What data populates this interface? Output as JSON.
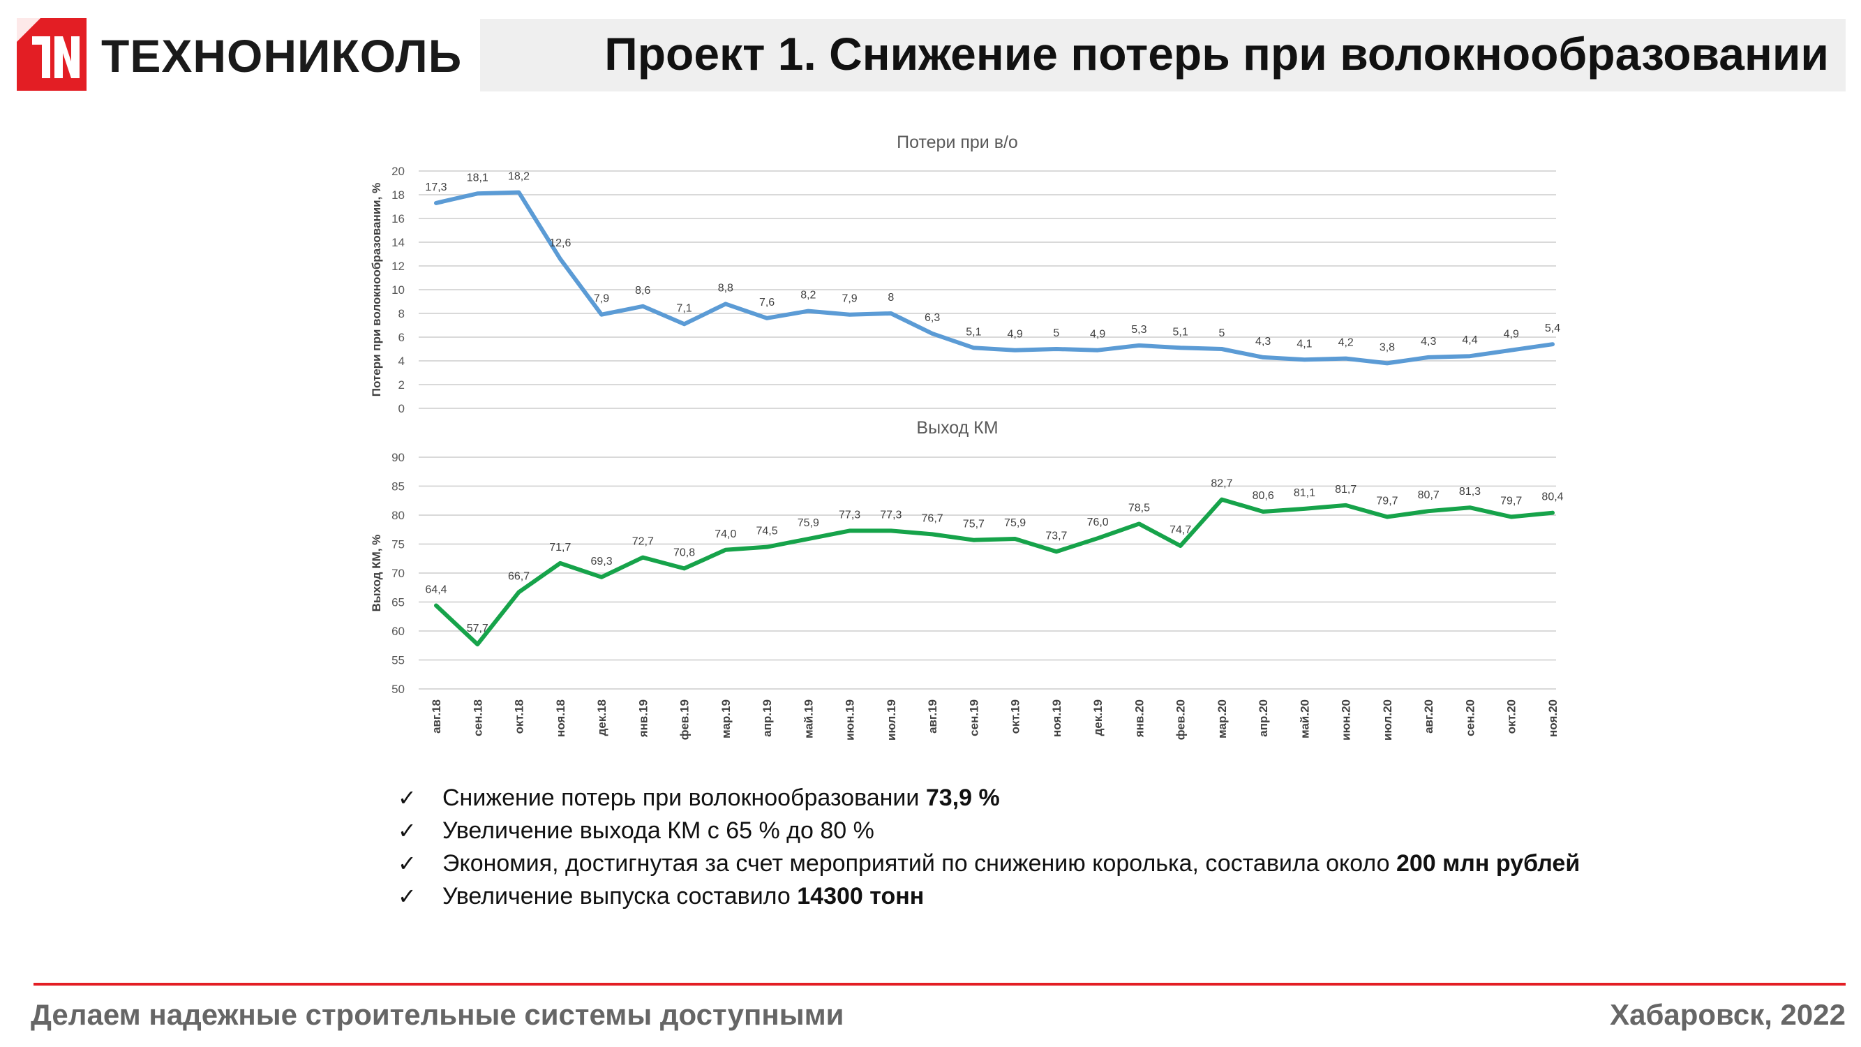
{
  "header": {
    "brand": "ТЕХНОНИКОЛЬ",
    "title": "Проект 1. Снижение потерь при волокнообразовании",
    "logo_color": "#e31e24"
  },
  "chart_data": [
    {
      "type": "line",
      "title": "Потери при в/о",
      "ylabel": "Потери при волокнообразовании, %",
      "xlabel": "",
      "ylim": [
        0,
        20
      ],
      "yticks": [
        0,
        2,
        4,
        6,
        8,
        10,
        12,
        14,
        16,
        18,
        20
      ],
      "grid": true,
      "color": "#5b9bd5",
      "categories": [
        "авг.18",
        "сен.18",
        "окт.18",
        "ноя.18",
        "дек.18",
        "янв.19",
        "фев.19",
        "мар.19",
        "апр.19",
        "май.19",
        "июн.19",
        "июл.19",
        "авг.19",
        "сен.19",
        "окт.19",
        "ноя.19",
        "дек.19",
        "янв.20",
        "фев.20",
        "мар.20",
        "апр.20",
        "май.20",
        "июн.20",
        "июл.20",
        "авг.20",
        "сен.20",
        "окт.20",
        "ноя.20"
      ],
      "values": [
        17.3,
        18.1,
        18.2,
        12.6,
        7.9,
        8.6,
        7.1,
        8.8,
        7.6,
        8.2,
        7.9,
        8,
        6.3,
        5.1,
        4.9,
        5,
        4.9,
        5.3,
        5.1,
        5,
        4.3,
        4.1,
        4.2,
        3.8,
        4.3,
        4.4,
        4.9,
        5.4
      ],
      "labels": [
        "17,3",
        "18,1",
        "18,2",
        "12,6",
        "7,9",
        "8,6",
        "7,1",
        "8,8",
        "7,6",
        "8,2",
        "7,9",
        "8",
        "6,3",
        "5,1",
        "4,9",
        "5",
        "4,9",
        "5,3",
        "5,1",
        "5",
        "4,3",
        "4,1",
        "4,2",
        "3,8",
        "4,3",
        "4,4",
        "4,9",
        "5,4"
      ]
    },
    {
      "type": "line",
      "title": "Выход КМ",
      "ylabel": "Выход КМ, %",
      "xlabel": "",
      "ylim": [
        50,
        90
      ],
      "yticks": [
        50,
        55,
        60,
        65,
        70,
        75,
        80,
        85,
        90
      ],
      "grid": true,
      "color": "#16a34a",
      "categories": [
        "авг.18",
        "сен.18",
        "окт.18",
        "ноя.18",
        "дек.18",
        "янв.19",
        "фев.19",
        "мар.19",
        "апр.19",
        "май.19",
        "июн.19",
        "июл.19",
        "авг.19",
        "сен.19",
        "окт.19",
        "ноя.19",
        "дек.19",
        "янв.20",
        "фев.20",
        "мар.20",
        "апр.20",
        "май.20",
        "июн.20",
        "июл.20",
        "авг.20",
        "сен.20",
        "окт.20",
        "ноя.20"
      ],
      "values": [
        64.4,
        57.7,
        66.7,
        71.7,
        69.3,
        72.7,
        70.8,
        74.0,
        74.5,
        75.9,
        77.3,
        77.3,
        76.7,
        75.7,
        75.9,
        73.7,
        76.0,
        78.5,
        74.7,
        82.7,
        80.6,
        81.1,
        81.7,
        79.7,
        80.7,
        81.3,
        79.7,
        80.4
      ],
      "labels": [
        "64,4",
        "57,7",
        "66,7",
        "71,7",
        "69,3",
        "72,7",
        "70,8",
        "74,0",
        "74,5",
        "75,9",
        "77,3",
        "77,3",
        "76,7",
        "75,7",
        "75,9",
        "73,7",
        "76,0",
        "78,5",
        "74,7",
        "82,7",
        "80,6",
        "81,1",
        "81,7",
        "79,7",
        "80,7",
        "81,3",
        "79,7",
        "80,4"
      ]
    }
  ],
  "bullets": [
    {
      "check": "✓",
      "text": "Снижение потерь при волокнообразовании ",
      "bold": "73,9 %"
    },
    {
      "check": "✓",
      "text": "Увеличение выхода КМ с 65 % до 80 %",
      "bold": ""
    },
    {
      "check": "✓",
      "text": "Экономия, достигнутая за счет мероприятий по снижению королька, составила около ",
      "bold": "200 млн рублей"
    },
    {
      "check": "✓",
      "text": "Увеличение выпуска составило ",
      "bold": "14300 тонн"
    }
  ],
  "footer": {
    "slogan": "Делаем надежные строительные системы доступными",
    "place_year": "Хабаровск, 2022"
  }
}
